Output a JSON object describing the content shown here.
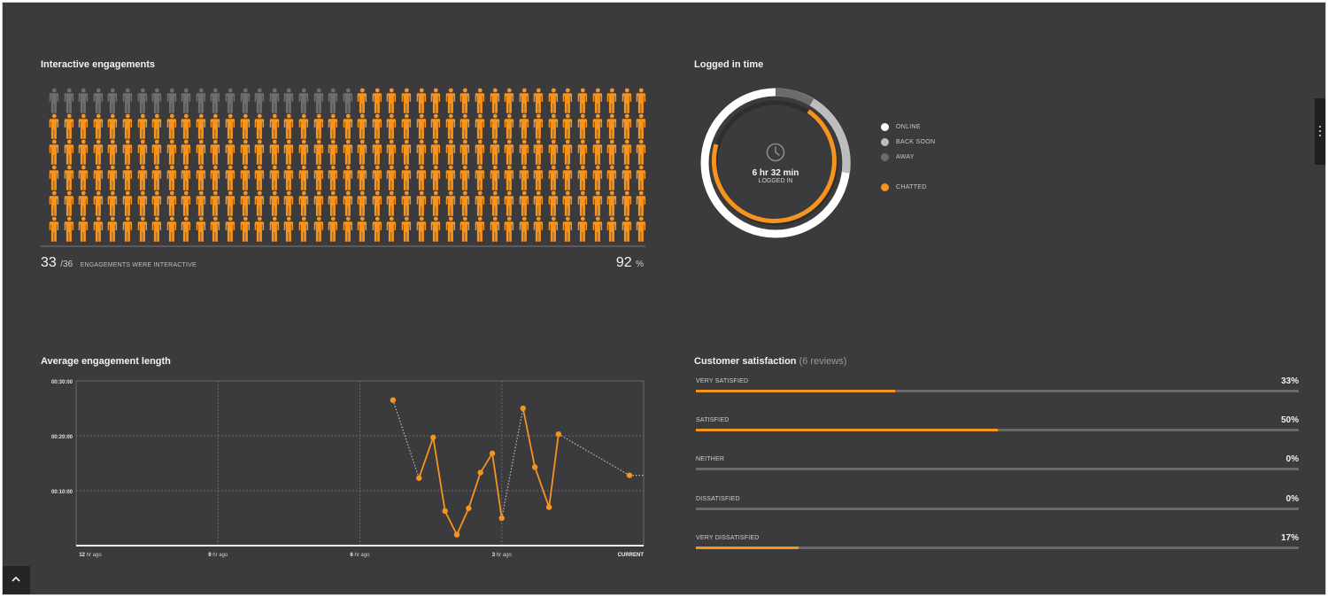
{
  "engagements": {
    "title": "Interactive engagements",
    "interactive": "33",
    "total": "/36",
    "caption": "ENGAGEMENTS WERE INTERACTIVE",
    "percent": "92",
    "percent_sign": "%",
    "grid_rows": 6,
    "grid_cols": 41,
    "inactive_count": 21,
    "colors": {
      "active": "#f7941d",
      "inactive": "#6e6e70"
    }
  },
  "logged_in": {
    "title": "Logged in time",
    "time": "6 hr 32 min",
    "sub": "LOGGED IN",
    "icon": "clock-icon",
    "legend": [
      {
        "label": "ONLINE",
        "color": "#ffffff"
      },
      {
        "label": "BACK SOON",
        "color": "#bdbdbd"
      },
      {
        "label": "AWAY",
        "color": "#6b6b6d"
      },
      {
        "label": "CHATTED",
        "color": "#f7941d"
      }
    ]
  },
  "avg_length": {
    "title": "Average engagement length"
  },
  "chart_data": {
    "type": "line",
    "y_ticks": [
      "00:30:00",
      "00:20:00",
      "00:10:00"
    ],
    "x_ticks": [
      {
        "num": "12",
        "unit": "hr ago"
      },
      {
        "num": "9",
        "unit": "hr ago"
      },
      {
        "num": "6",
        "unit": "hr ago"
      },
      {
        "num": "3",
        "unit": "hr ago"
      },
      {
        "num": "",
        "unit": "CURRENT"
      }
    ],
    "x_range_hours_ago": [
      12,
      0
    ],
    "y_range_minutes": [
      0,
      30
    ],
    "series": [
      {
        "x_hours_ago": [
          5.3,
          4.75,
          4.45,
          4.2,
          3.95,
          3.7,
          3.45,
          3.2,
          3.0,
          2.55,
          2.3,
          2.0,
          1.8,
          0.3,
          0.0
        ],
        "y_minutes": [
          26.5,
          12.3,
          19.7,
          6.3,
          2.0,
          6.8,
          13.3,
          16.8,
          5.0,
          25.0,
          14.3,
          7.0,
          20.3,
          12.8,
          12.8
        ],
        "segments": [
          "dotted",
          "solid",
          "solid",
          "solid",
          "solid",
          "solid",
          "solid",
          "solid",
          "dotted",
          "solid",
          "solid",
          "solid",
          "dotted",
          "dotted"
        ]
      }
    ],
    "grid": true,
    "colors": {
      "line": "#f7941d",
      "gap": "#bdbdbd"
    }
  },
  "satisfaction": {
    "title": "Customer satisfaction",
    "subtitle": "(6 reviews)",
    "rows": [
      {
        "label": "VERY SATISFIED",
        "pct": "33%",
        "value": 0.33
      },
      {
        "label": "SATISFIED",
        "pct": "50%",
        "value": 0.5
      },
      {
        "label": "NEITHER",
        "pct": "0%",
        "value": 0
      },
      {
        "label": "DISSATISFIED",
        "pct": "0%",
        "value": 0
      },
      {
        "label": "VERY DISSATISFIED",
        "pct": "17%",
        "value": 0.17
      }
    ]
  },
  "controls": {
    "side_handle_icon": "more-vertical-icon",
    "collapse_icon": "chevron-up-icon"
  }
}
